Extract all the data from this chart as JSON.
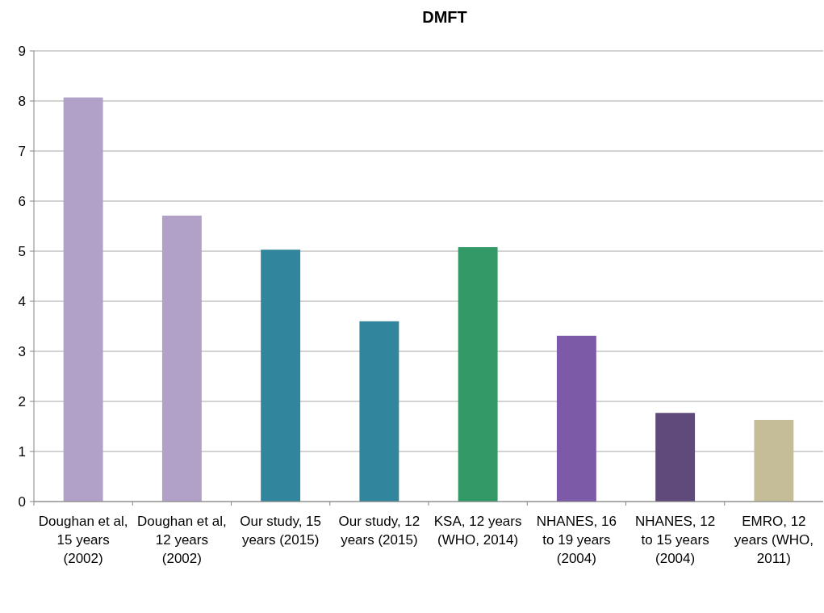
{
  "chart_data": {
    "type": "bar",
    "title": "DMFT",
    "categories": [
      "Doughan et al, 15 years (2002)",
      "Doughan et al, 12 years (2002)",
      "Our study, 15 years (2015)",
      "Our study, 12 years (2015)",
      "KSA, 12 years (WHO, 2014)",
      "NHANES, 16 to 19 years (2004)",
      "NHANES, 12 to 15 years (2004)",
      "EMRO, 12 years (WHO, 2011)"
    ],
    "values": [
      8.07,
      5.71,
      5.03,
      3.6,
      5.08,
      3.31,
      1.77,
      1.63
    ],
    "colors": [
      "#b1a0c7",
      "#b1a0c7",
      "#31859c",
      "#31859c",
      "#339966",
      "#7d5aa8",
      "#604a7b",
      "#c4bd97"
    ],
    "ylim": [
      0,
      9
    ],
    "yticks": [
      0,
      1,
      2,
      3,
      4,
      5,
      6,
      7,
      8,
      9
    ],
    "grid": "y"
  }
}
